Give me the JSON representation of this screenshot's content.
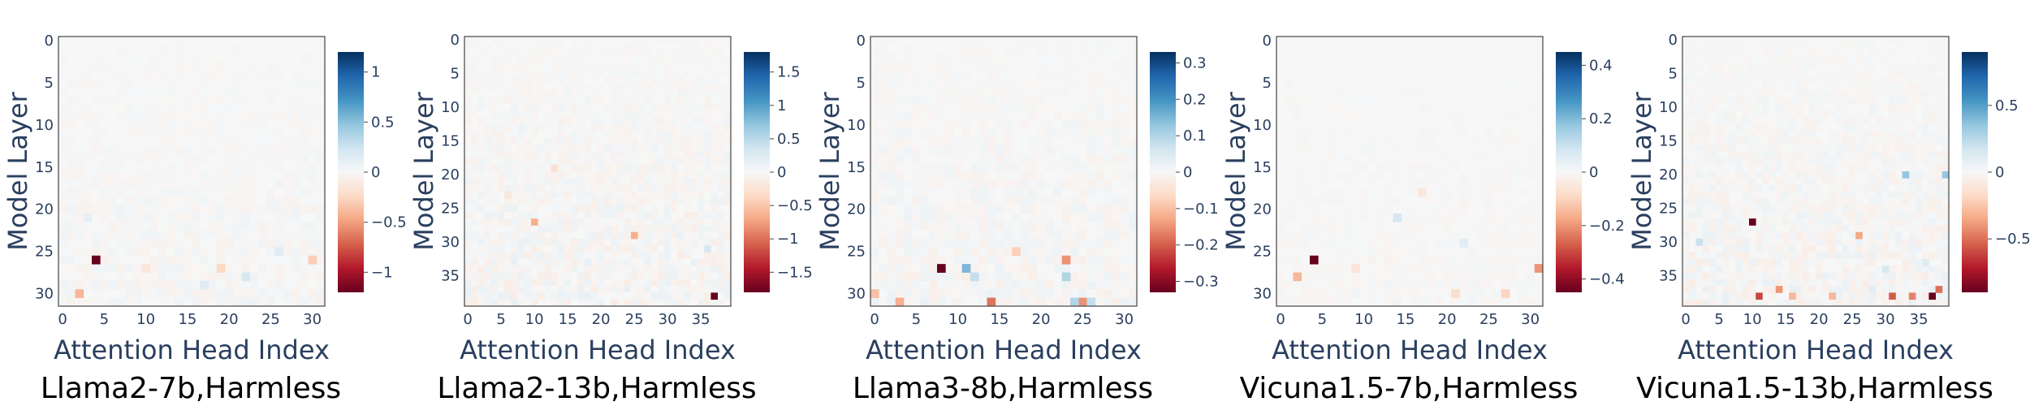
{
  "chart_data": [
    {
      "type": "heatmap",
      "caption": "Llama2-7b,Harmless",
      "xlabel": "Attention Head Index",
      "ylabel": "Model Layer",
      "n_heads": 32,
      "n_layers": 32,
      "x_ticks": [
        0,
        5,
        10,
        15,
        20,
        25,
        30
      ],
      "y_ticks": [
        0,
        5,
        10,
        15,
        20,
        25,
        30
      ],
      "zlim": [
        -1.2,
        1.2
      ],
      "colorbar_ticks": [
        {
          "v": 1,
          "label": "1"
        },
        {
          "v": 0.5,
          "label": "0.5"
        },
        {
          "v": 0,
          "label": "0"
        },
        {
          "v": -0.5,
          "label": "−0.5"
        },
        {
          "v": -1,
          "label": "−1"
        }
      ],
      "background_noise": 0.03,
      "cells": [
        {
          "head": 4,
          "layer": 26,
          "value": -1.2
        },
        {
          "head": 2,
          "layer": 30,
          "value": -0.4
        },
        {
          "head": 19,
          "layer": 27,
          "value": -0.25
        },
        {
          "head": 22,
          "layer": 28,
          "value": 0.2
        },
        {
          "head": 26,
          "layer": 25,
          "value": 0.15
        },
        {
          "head": 30,
          "layer": 26,
          "value": -0.3
        },
        {
          "head": 3,
          "layer": 21,
          "value": 0.1
        },
        {
          "head": 17,
          "layer": 29,
          "value": 0.15
        },
        {
          "head": 10,
          "layer": 27,
          "value": -0.15
        }
      ]
    },
    {
      "type": "heatmap",
      "caption": "Llama2-13b,Harmless",
      "xlabel": "Attention Head Index",
      "ylabel": "Model Layer",
      "n_heads": 40,
      "n_layers": 40,
      "x_ticks": [
        0,
        5,
        10,
        15,
        20,
        25,
        30,
        35
      ],
      "y_ticks": [
        0,
        5,
        10,
        15,
        20,
        25,
        30,
        35
      ],
      "zlim": [
        -1.8,
        1.8
      ],
      "colorbar_ticks": [
        {
          "v": 1.5,
          "label": "1.5"
        },
        {
          "v": 1,
          "label": "1"
        },
        {
          "v": 0.5,
          "label": "0.5"
        },
        {
          "v": 0,
          "label": "0"
        },
        {
          "v": -0.5,
          "label": "−0.5"
        },
        {
          "v": -1,
          "label": "−1"
        },
        {
          "v": -1.5,
          "label": "−1.5"
        }
      ],
      "background_noise": 0.05,
      "cells": [
        {
          "head": 37,
          "layer": 38,
          "value": -1.8
        },
        {
          "head": 10,
          "layer": 27,
          "value": -0.65
        },
        {
          "head": 25,
          "layer": 29,
          "value": -0.65
        },
        {
          "head": 13,
          "layer": 19,
          "value": -0.3
        },
        {
          "head": 36,
          "layer": 31,
          "value": 0.3
        },
        {
          "head": 6,
          "layer": 23,
          "value": -0.2
        },
        {
          "head": 18,
          "layer": 33,
          "value": 0.15
        }
      ]
    },
    {
      "type": "heatmap",
      "caption": "Llama3-8b,Harmless",
      "xlabel": "Attention Head Index",
      "ylabel": "Model Layer",
      "n_heads": 32,
      "n_layers": 32,
      "x_ticks": [
        0,
        5,
        10,
        15,
        20,
        25,
        30
      ],
      "y_ticks": [
        0,
        5,
        10,
        15,
        20,
        25,
        30
      ],
      "zlim": [
        -0.33,
        0.33
      ],
      "colorbar_ticks": [
        {
          "v": 0.3,
          "label": "0.3"
        },
        {
          "v": 0.2,
          "label": "0.2"
        },
        {
          "v": 0.1,
          "label": "0.1"
        },
        {
          "v": 0,
          "label": "0"
        },
        {
          "v": -0.1,
          "label": "−0.1"
        },
        {
          "v": -0.2,
          "label": "−0.2"
        },
        {
          "v": -0.3,
          "label": "−0.3"
        }
      ],
      "background_noise": 0.04,
      "cells": [
        {
          "head": 8,
          "layer": 27,
          "value": -0.33
        },
        {
          "head": 11,
          "layer": 27,
          "value": 0.15
        },
        {
          "head": 23,
          "layer": 26,
          "value": -0.15
        },
        {
          "head": 23,
          "layer": 28,
          "value": 0.1
        },
        {
          "head": 14,
          "layer": 31,
          "value": -0.18
        },
        {
          "head": 25,
          "layer": 31,
          "value": -0.15
        },
        {
          "head": 3,
          "layer": 31,
          "value": -0.12
        },
        {
          "head": 0,
          "layer": 30,
          "value": -0.1
        },
        {
          "head": 24,
          "layer": 31,
          "value": 0.1
        },
        {
          "head": 26,
          "layer": 31,
          "value": 0.08
        },
        {
          "head": 12,
          "layer": 28,
          "value": 0.08
        },
        {
          "head": 17,
          "layer": 25,
          "value": -0.08
        }
      ]
    },
    {
      "type": "heatmap",
      "caption": "Vicuna1.5-7b,Harmless",
      "xlabel": "Attention Head Index",
      "ylabel": "Model Layer",
      "n_heads": 32,
      "n_layers": 32,
      "x_ticks": [
        0,
        5,
        10,
        15,
        20,
        25,
        30
      ],
      "y_ticks": [
        0,
        5,
        10,
        15,
        20,
        25,
        30
      ],
      "zlim": [
        -0.45,
        0.45
      ],
      "colorbar_ticks": [
        {
          "v": 0.4,
          "label": "0.4"
        },
        {
          "v": 0.2,
          "label": "0.2"
        },
        {
          "v": 0,
          "label": "0"
        },
        {
          "v": -0.2,
          "label": "−0.2"
        },
        {
          "v": -0.4,
          "label": "−0.4"
        }
      ],
      "background_noise": 0.02,
      "cells": [
        {
          "head": 4,
          "layer": 26,
          "value": -0.45
        },
        {
          "head": 2,
          "layer": 28,
          "value": -0.15
        },
        {
          "head": 31,
          "layer": 27,
          "value": -0.2
        },
        {
          "head": 14,
          "layer": 21,
          "value": 0.08
        },
        {
          "head": 22,
          "layer": 24,
          "value": 0.05
        },
        {
          "head": 17,
          "layer": 18,
          "value": -0.05
        },
        {
          "head": 27,
          "layer": 30,
          "value": -0.1
        },
        {
          "head": 9,
          "layer": 27,
          "value": -0.06
        },
        {
          "head": 21,
          "layer": 30,
          "value": -0.08
        }
      ]
    },
    {
      "type": "heatmap",
      "caption": "Vicuna1.5-13b,Harmless",
      "xlabel": "Attention Head Index",
      "ylabel": "Model Layer",
      "n_heads": 40,
      "n_layers": 40,
      "x_ticks": [
        0,
        5,
        10,
        15,
        20,
        25,
        30,
        35
      ],
      "y_ticks": [
        0,
        5,
        10,
        15,
        20,
        25,
        30,
        35
      ],
      "zlim": [
        -0.9,
        0.9
      ],
      "colorbar_ticks": [
        {
          "v": 0.5,
          "label": "0.5"
        },
        {
          "v": 0,
          "label": "0"
        },
        {
          "v": -0.5,
          "label": "−0.5"
        }
      ],
      "background_noise": 0.05,
      "cells": [
        {
          "head": 10,
          "layer": 27,
          "value": -0.9
        },
        {
          "head": 37,
          "layer": 38,
          "value": -0.9
        },
        {
          "head": 38,
          "layer": 37,
          "value": -0.5
        },
        {
          "head": 11,
          "layer": 38,
          "value": -0.6
        },
        {
          "head": 14,
          "layer": 37,
          "value": -0.4
        },
        {
          "head": 16,
          "layer": 38,
          "value": -0.3
        },
        {
          "head": 31,
          "layer": 38,
          "value": -0.55
        },
        {
          "head": 34,
          "layer": 38,
          "value": -0.45
        },
        {
          "head": 33,
          "layer": 20,
          "value": 0.35
        },
        {
          "head": 39,
          "layer": 20,
          "value": 0.35
        },
        {
          "head": 2,
          "layer": 30,
          "value": 0.2
        },
        {
          "head": 26,
          "layer": 29,
          "value": -0.35
        },
        {
          "head": 22,
          "layer": 38,
          "value": -0.3
        },
        {
          "head": 30,
          "layer": 34,
          "value": 0.15
        },
        {
          "head": 28,
          "layer": 37,
          "value": 0.1
        },
        {
          "head": 36,
          "layer": 33,
          "value": 0.12
        }
      ]
    }
  ]
}
